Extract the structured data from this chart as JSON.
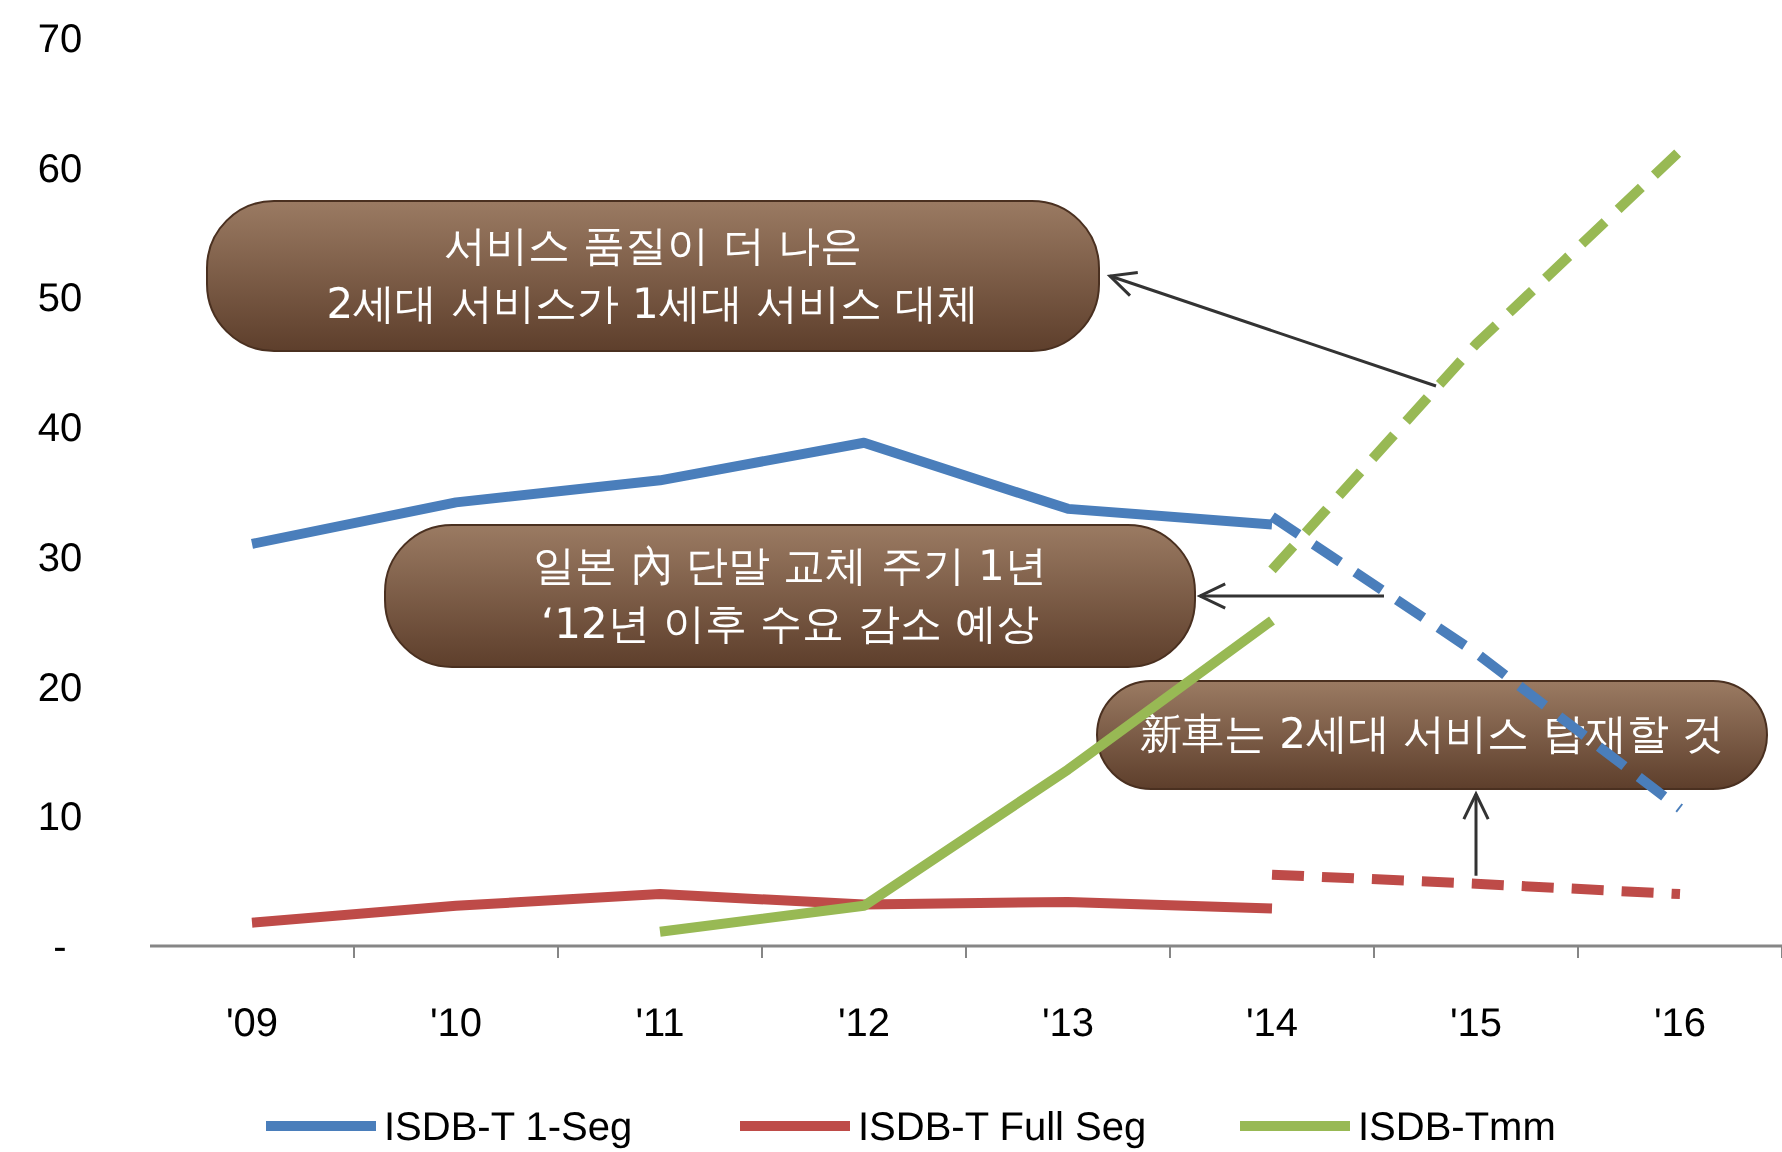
{
  "chart_data": {
    "type": "line",
    "categories": [
      "'09",
      "'10",
      "'11",
      "'12",
      "'13",
      "'14",
      "'15",
      "'16"
    ],
    "series": [
      {
        "name": "ISDB-T 1-Seg",
        "color": "#4a7ebb",
        "values": [
          31,
          34.2,
          35.9,
          38.8,
          33.7,
          32.5,
          null,
          null
        ]
      },
      {
        "name": "ISDB-T Full Seg",
        "color": "#be4b48",
        "values": [
          1.8,
          3.1,
          4.0,
          3.2,
          3.4,
          2.9,
          null,
          null
        ]
      },
      {
        "name": "ISDB-Tmm",
        "color": "#98b954",
        "values": [
          null,
          null,
          1.1,
          3.1,
          13.6,
          25.1,
          null,
          null
        ]
      },
      {
        "color": "#4a7ebb",
        "line_style": "dashed",
        "values": [
          null,
          null,
          null,
          null,
          null,
          33.1,
          22.6,
          10.6
        ]
      },
      {
        "color": "#be4b48",
        "line_style": "dashed",
        "values": [
          null,
          null,
          null,
          null,
          null,
          5.5,
          4.8,
          4.0
        ]
      },
      {
        "color": "#98b954",
        "line_style": "dashed",
        "values": [
          null,
          null,
          null,
          null,
          null,
          29.0,
          46.4,
          61.3
        ]
      }
    ],
    "ylim": [
      0,
      70
    ],
    "yticks": [
      {
        "value": 0,
        "label": "-"
      },
      10,
      20,
      30,
      40,
      50,
      60,
      70
    ],
    "grid": false,
    "legend": "bottom",
    "marker": "none",
    "annotations": [
      "서비스 품질이 더 나은\n2세대 서비스가 1세대 서비스 대체",
      "일본 內 단말 교체 주기 1년\n‘12년 이후 수요 감소 예상",
      {
        "text": "新車는 2세대 서비스 탑재할 것",
        "x": "'15",
        "y": 4.8
      }
    ]
  }
}
